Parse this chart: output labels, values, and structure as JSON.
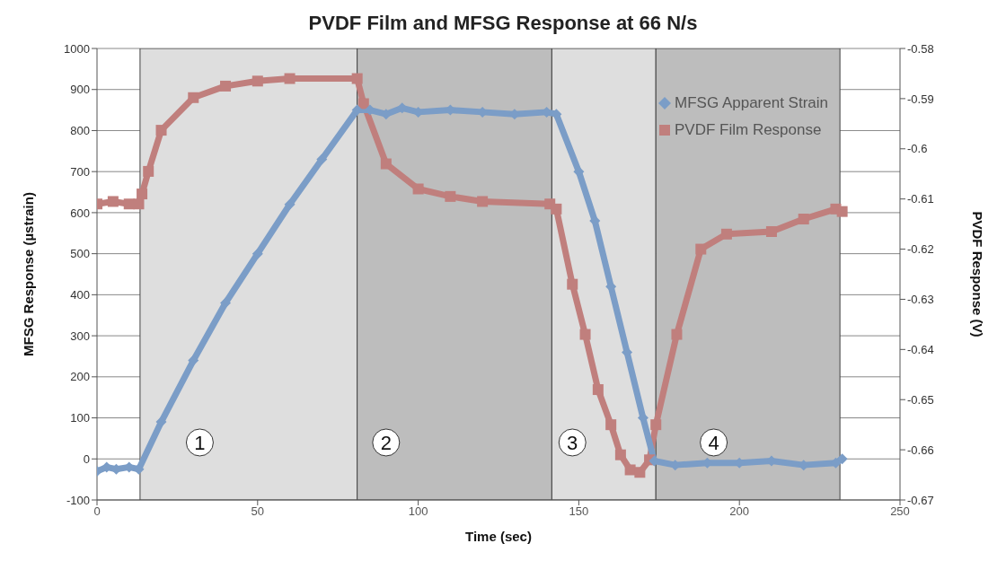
{
  "chart_data": {
    "type": "line",
    "title": "PVDF Film and MFSG Response at 66 N/s",
    "xlabel": "Time (sec)",
    "ylabel": "MFSG Response (µstrain)",
    "y2label": "PVDF Response (V)",
    "xlim": [
      0,
      250
    ],
    "xticks": [
      0,
      50,
      100,
      150,
      200,
      250
    ],
    "ylim": [
      -100,
      1000
    ],
    "yticks": [
      -100,
      0,
      100,
      200,
      300,
      400,
      500,
      600,
      700,
      800,
      900,
      1000
    ],
    "y2lim": [
      -0.67,
      -0.58
    ],
    "y2ticks": [
      -0.67,
      -0.66,
      -0.65,
      -0.64,
      -0.63,
      -0.62,
      -0.61,
      -0.6,
      -0.59,
      -0.58
    ],
    "grid": "y",
    "legend": "top right",
    "line_style": "solid",
    "bands": [
      {
        "axis": "x",
        "from": 13.4,
        "to": 81,
        "color": "#dedede"
      },
      {
        "axis": "x",
        "from": 81,
        "to": 141.6,
        "color": "#bdbdbd"
      },
      {
        "axis": "x",
        "from": 141.6,
        "to": 174,
        "color": "#dedede"
      },
      {
        "axis": "x",
        "from": 174,
        "to": 231.3,
        "color": "#bdbdbd"
      }
    ],
    "annotations": [
      {
        "text": "1",
        "x": 32,
        "y": 40
      },
      {
        "text": "2",
        "x": 90,
        "y": 40
      },
      {
        "text": "3",
        "x": 148,
        "y": 40
      },
      {
        "text": "4",
        "x": 192,
        "y": 40
      }
    ],
    "series": [
      {
        "name": "MFSG Apparent Strain",
        "color": "#7b9dc7",
        "marker": "diamond",
        "x": [
          0,
          3,
          6,
          10,
          13,
          20,
          30,
          40,
          50,
          60,
          70,
          81,
          85,
          90,
          95,
          100,
          110,
          120,
          130,
          140,
          143,
          150,
          155,
          160,
          165,
          170,
          173.5,
          180,
          190,
          200,
          210,
          220,
          230,
          232
        ],
        "values": [
          -30,
          -20,
          -25,
          -20,
          -25,
          90,
          240,
          380,
          500,
          620,
          730,
          850,
          850,
          840,
          855,
          845,
          850,
          845,
          840,
          845,
          840,
          700,
          580,
          420,
          260,
          100,
          -5,
          -15,
          -10,
          -10,
          -5,
          -15,
          -10,
          0
        ]
      },
      {
        "name": "PVDF Film Response",
        "color": "#c07f7d",
        "marker": "square",
        "axis": "y2",
        "x": [
          0,
          5,
          10,
          13,
          14,
          16,
          20,
          30,
          40,
          50,
          60,
          81,
          83,
          90,
          100,
          110,
          120,
          141,
          143,
          148,
          152,
          156,
          160,
          163,
          166,
          169,
          172,
          174,
          180.5,
          188,
          196,
          210,
          220,
          230,
          232
        ],
        "values": [
          -0.611,
          -0.6105,
          -0.611,
          -0.611,
          -0.609,
          -0.6045,
          -0.5963,
          -0.5898,
          -0.5875,
          -0.5865,
          -0.586,
          -0.586,
          -0.591,
          -0.603,
          -0.608,
          -0.6095,
          -0.6105,
          -0.611,
          -0.612,
          -0.627,
          -0.637,
          -0.648,
          -0.655,
          -0.661,
          -0.664,
          -0.6645,
          -0.662,
          -0.655,
          -0.637,
          -0.62,
          -0.617,
          -0.6165,
          -0.614,
          -0.612,
          -0.6125
        ]
      }
    ]
  }
}
